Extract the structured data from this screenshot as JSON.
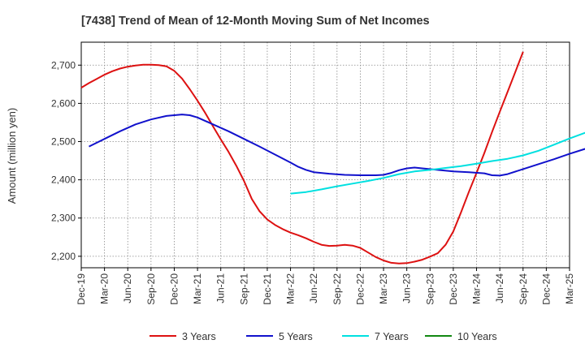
{
  "chart_data": {
    "type": "line",
    "title": "[7438]  Trend of Mean of 12-Month Moving Sum of Net Incomes",
    "ylabel": "Amount (million yen)",
    "xlabel": "",
    "ylim": [
      2170,
      2760
    ],
    "yticks": [
      2200,
      2300,
      2400,
      2500,
      2600,
      2700
    ],
    "ytick_labels": [
      "2,200",
      "2,300",
      "2,400",
      "2,500",
      "2,600",
      "2,700"
    ],
    "x_categories": [
      "Dec-19",
      "Mar-20",
      "Jun-20",
      "Sep-20",
      "Dec-20",
      "Mar-21",
      "Jun-21",
      "Sep-21",
      "Dec-21",
      "Mar-22",
      "Jun-22",
      "Sep-22",
      "Dec-22",
      "Mar-23",
      "Jun-23",
      "Sep-23",
      "Dec-23",
      "Mar-24",
      "Jun-24",
      "Sep-24",
      "Dec-24",
      "Mar-25"
    ],
    "grid": true,
    "legend_position": "bottom",
    "series": [
      {
        "name": "3 Years",
        "color": "#dd1111",
        "points": [
          [
            0,
            2641
          ],
          [
            1,
            2653
          ],
          [
            2,
            2664
          ],
          [
            3,
            2675
          ],
          [
            4,
            2684
          ],
          [
            5,
            2691
          ],
          [
            6,
            2696
          ],
          [
            7,
            2699
          ],
          [
            8,
            2701
          ],
          [
            9,
            2701
          ],
          [
            10,
            2700
          ],
          [
            11,
            2697
          ],
          [
            12,
            2685
          ],
          [
            13,
            2665
          ],
          [
            14,
            2637
          ],
          [
            15,
            2607
          ],
          [
            16,
            2575
          ],
          [
            17,
            2540
          ],
          [
            18,
            2506
          ],
          [
            19,
            2473
          ],
          [
            20,
            2437
          ],
          [
            21,
            2397
          ],
          [
            22,
            2350
          ],
          [
            23,
            2318
          ],
          [
            24,
            2296
          ],
          [
            25,
            2282
          ],
          [
            26,
            2271
          ],
          [
            27,
            2262
          ],
          [
            28,
            2255
          ],
          [
            29,
            2247
          ],
          [
            30,
            2238
          ],
          [
            31,
            2230
          ],
          [
            32,
            2227
          ],
          [
            33,
            2228
          ],
          [
            34,
            2230
          ],
          [
            35,
            2228
          ],
          [
            36,
            2222
          ],
          [
            37,
            2210
          ],
          [
            38,
            2198
          ],
          [
            39,
            2189
          ],
          [
            40,
            2183
          ],
          [
            41,
            2181
          ],
          [
            42,
            2182
          ],
          [
            43,
            2186
          ],
          [
            44,
            2191
          ],
          [
            45,
            2199
          ],
          [
            46,
            2208
          ],
          [
            47,
            2230
          ],
          [
            48,
            2265
          ],
          [
            49,
            2315
          ],
          [
            50,
            2368
          ],
          [
            51,
            2418
          ],
          [
            52,
            2470
          ],
          [
            53,
            2525
          ],
          [
            54,
            2578
          ],
          [
            55,
            2630
          ],
          [
            56,
            2682
          ],
          [
            57,
            2735
          ]
        ]
      },
      {
        "name": "5 Years",
        "color": "#1111cc",
        "points": [
          [
            1,
            2487
          ],
          [
            3,
            2507
          ],
          [
            5,
            2527
          ],
          [
            7,
            2545
          ],
          [
            9,
            2558
          ],
          [
            11,
            2567
          ],
          [
            13,
            2571
          ],
          [
            14,
            2569
          ],
          [
            15,
            2563
          ],
          [
            17,
            2545
          ],
          [
            19,
            2527
          ],
          [
            21,
            2507
          ],
          [
            23,
            2487
          ],
          [
            25,
            2466
          ],
          [
            27,
            2445
          ],
          [
            28,
            2434
          ],
          [
            29,
            2426
          ],
          [
            30,
            2420
          ],
          [
            32,
            2416
          ],
          [
            34,
            2413
          ],
          [
            36,
            2412
          ],
          [
            38,
            2412
          ],
          [
            39,
            2413
          ],
          [
            40,
            2418
          ],
          [
            41,
            2425
          ],
          [
            42,
            2430
          ],
          [
            43,
            2432
          ],
          [
            44,
            2430
          ],
          [
            46,
            2426
          ],
          [
            48,
            2422
          ],
          [
            50,
            2420
          ],
          [
            52,
            2417
          ],
          [
            53,
            2412
          ],
          [
            54,
            2411
          ],
          [
            55,
            2415
          ],
          [
            57,
            2428
          ],
          [
            59,
            2441
          ],
          [
            61,
            2454
          ],
          [
            63,
            2468
          ],
          [
            65,
            2481
          ],
          [
            66,
            2488
          ],
          [
            67,
            2494
          ]
        ]
      },
      {
        "name": "7 Years",
        "color": "#00e0e0",
        "points": [
          [
            27,
            2364
          ],
          [
            29,
            2368
          ],
          [
            31,
            2375
          ],
          [
            33,
            2383
          ],
          [
            35,
            2390
          ],
          [
            37,
            2397
          ],
          [
            39,
            2405
          ],
          [
            41,
            2415
          ],
          [
            43,
            2422
          ],
          [
            45,
            2426
          ],
          [
            47,
            2431
          ],
          [
            49,
            2436
          ],
          [
            51,
            2442
          ],
          [
            53,
            2449
          ],
          [
            55,
            2455
          ],
          [
            57,
            2464
          ],
          [
            59,
            2476
          ],
          [
            61,
            2492
          ],
          [
            63,
            2508
          ],
          [
            65,
            2523
          ],
          [
            67,
            2540
          ],
          [
            68,
            2549
          ],
          [
            69,
            2559
          ]
        ]
      },
      {
        "name": "10 Years",
        "color": "#118811",
        "points": []
      }
    ]
  }
}
